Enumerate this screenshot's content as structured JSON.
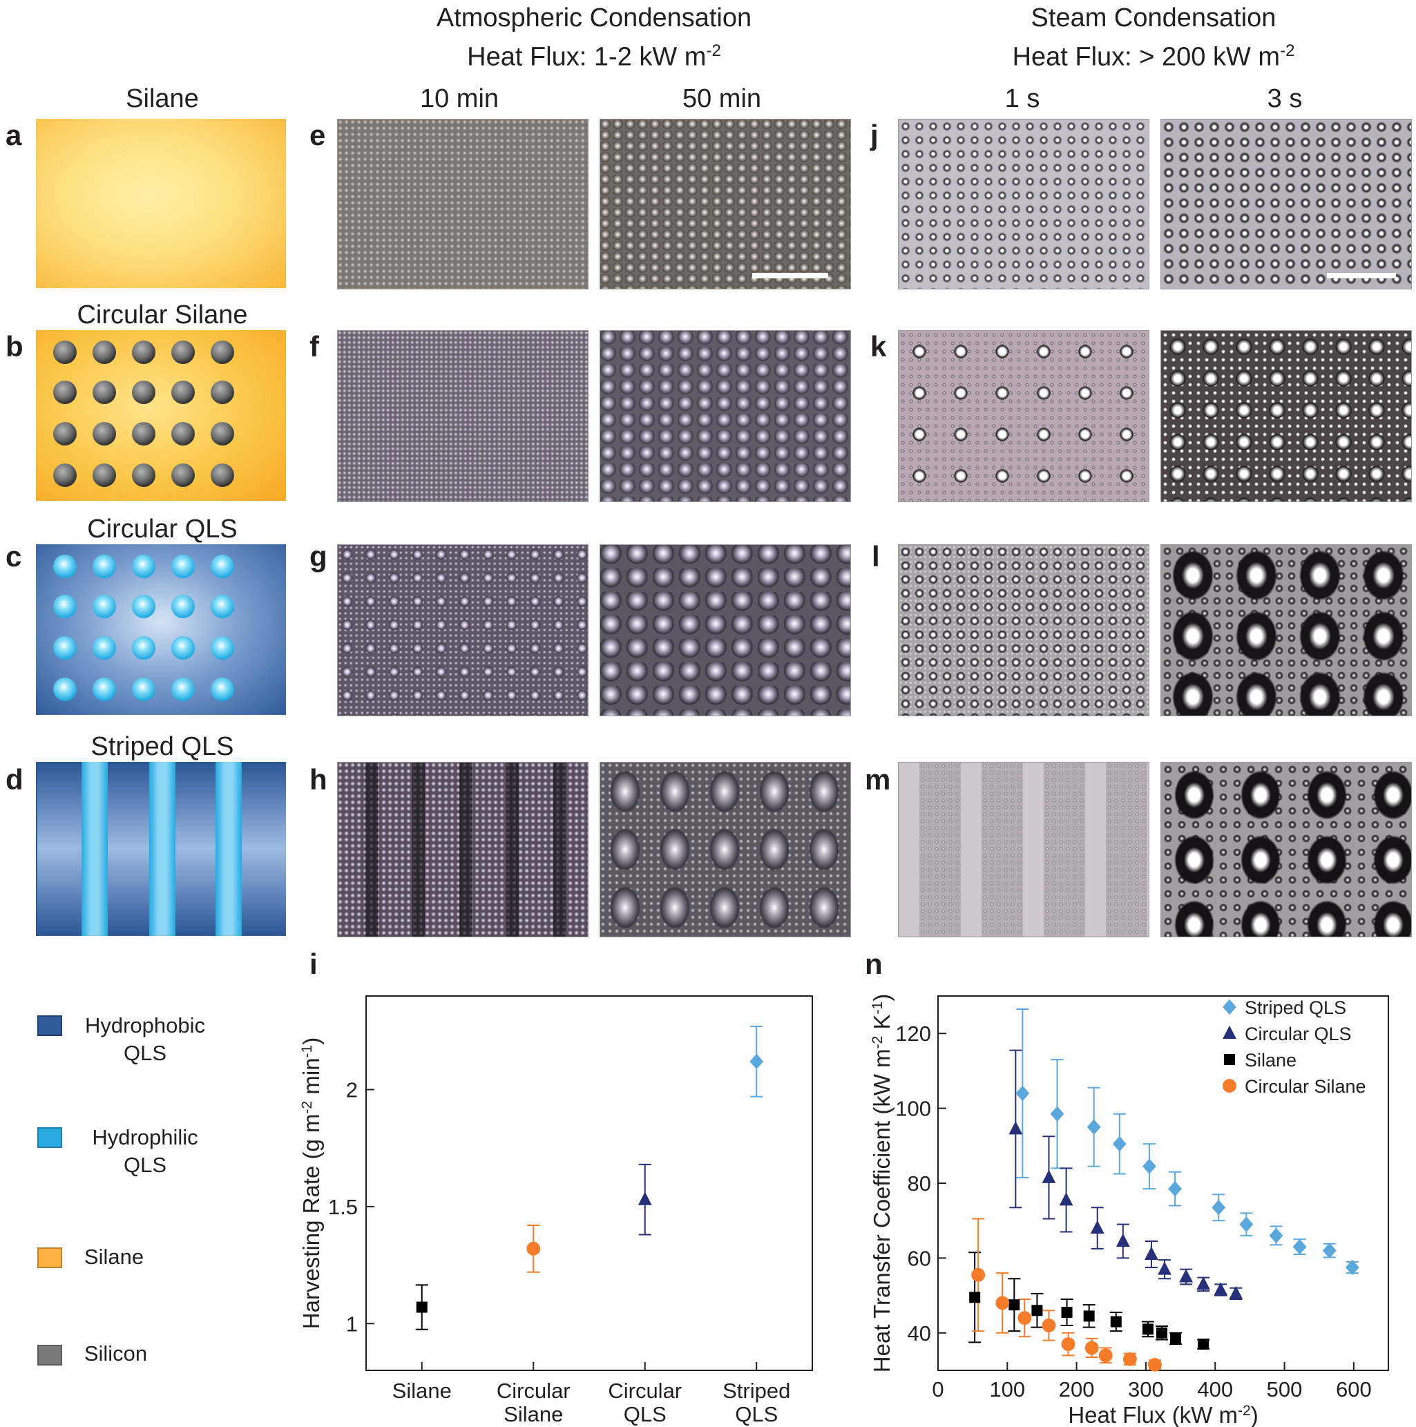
{
  "headers": {
    "atmospheric": [
      "Atmospheric Condensation",
      "Heat Flux: 1-2 kW m",
      "-2"
    ],
    "steam": [
      "Steam Condensation",
      "Heat Flux: > 200 kW m",
      "-2"
    ]
  },
  "columns": {
    "silane": "Silane",
    "t10": "10 min",
    "t50": "50 min",
    "t1": "1 s",
    "t3": "3 s"
  },
  "row_titles": {
    "b": "Circular Silane",
    "c": "Circular QLS",
    "d": "Striped QLS"
  },
  "panel_letters": [
    "a",
    "b",
    "c",
    "d",
    "e",
    "f",
    "g",
    "h",
    "i",
    "j",
    "k",
    "l",
    "m",
    "n"
  ],
  "legend": [
    {
      "label_1": "Hydrophobic",
      "label_2": "QLS",
      "color": "#2f5b9a"
    },
    {
      "label_1": "Hydrophilic",
      "label_2": "QLS",
      "color": "#29aae1"
    },
    {
      "label_1": "Silane",
      "label_2": "",
      "color": "#fbb040"
    },
    {
      "label_1": "Silicon",
      "label_2": "",
      "color": "#7a7a7a"
    }
  ],
  "chart_data": [
    {
      "panel": "i",
      "type": "scatter",
      "ylabel": "Harvesting Rate (g m-2 min-1)",
      "categories": [
        "Silane",
        "Circular Silane",
        "Circular QLS",
        "Striped QLS"
      ],
      "category_lines": [
        [
          "Silane",
          ""
        ],
        [
          "Circular",
          "Silane"
        ],
        [
          "Circular",
          "QLS"
        ],
        [
          "Striped",
          "QLS"
        ]
      ],
      "values": [
        1.07,
        1.32,
        1.53,
        2.12
      ],
      "errors": [
        0.095,
        0.1,
        0.15,
        0.15
      ],
      "markers": [
        "square",
        "circle",
        "triangle",
        "diamond"
      ],
      "colors": [
        "#000000",
        "#f47b2a",
        "#262f7a",
        "#5aa7dc"
      ],
      "yticks": [
        1,
        1.5,
        2
      ],
      "ylim": [
        0.8,
        2.4
      ]
    },
    {
      "panel": "n",
      "type": "scatter",
      "xlabel": "Heat Flux (kW m-2)",
      "ylabel": "Heat Transfer Coefficient (kW m-2 K-1)",
      "xlim": [
        0,
        650
      ],
      "ylim": [
        30,
        130
      ],
      "xticks": [
        0,
        100,
        200,
        300,
        400,
        500,
        600
      ],
      "yticks": [
        40,
        60,
        80,
        100,
        120
      ],
      "legend_position": "top-right",
      "series": [
        {
          "name": "Striped QLS",
          "marker": "diamond",
          "color": "#5aa7dc",
          "x": [
            122,
            172,
            225,
            262,
            305,
            342,
            405,
            445,
            488,
            522,
            565,
            598
          ],
          "y": [
            104,
            98.5,
            95,
            90.5,
            84.5,
            78.5,
            73.5,
            69,
            66,
            63,
            62,
            57.5
          ],
          "err": [
            22.5,
            14.5,
            10.5,
            8,
            6,
            4.5,
            3.5,
            3,
            2.5,
            2,
            1.8,
            1.5
          ]
        },
        {
          "name": "Circular QLS",
          "marker": "triangle",
          "color": "#262f7a",
          "x": [
            112,
            160,
            185,
            230,
            267,
            308,
            327,
            358,
            383,
            408,
            430
          ],
          "y": [
            94.5,
            81.5,
            75.5,
            68,
            64.5,
            61,
            57,
            55,
            53,
            51.5,
            50.5
          ],
          "err": [
            21,
            11,
            8.5,
            5.5,
            4.5,
            3.5,
            2.5,
            2,
            1.8,
            1.5,
            1.5
          ]
        },
        {
          "name": "Silane",
          "marker": "square",
          "color": "#000000",
          "x": [
            53,
            110,
            143,
            186,
            218,
            257,
            303,
            323,
            343,
            383
          ],
          "y": [
            49.5,
            47.5,
            46,
            45.5,
            44.5,
            43,
            41,
            40,
            38.5,
            37
          ],
          "err": [
            12,
            7,
            4.5,
            3.5,
            3,
            2.5,
            2,
            1.8,
            1.5,
            1.2
          ]
        },
        {
          "name": "Circular Silane",
          "marker": "circle",
          "color": "#f47b2a",
          "x": [
            58,
            93,
            125,
            160,
            188,
            222,
            242,
            277,
            313
          ],
          "y": [
            55.5,
            48,
            44,
            42,
            37,
            36,
            34,
            33,
            31.5
          ],
          "err": [
            15,
            8,
            5,
            4,
            3,
            2.5,
            2,
            1.5,
            1.2
          ]
        }
      ]
    }
  ]
}
